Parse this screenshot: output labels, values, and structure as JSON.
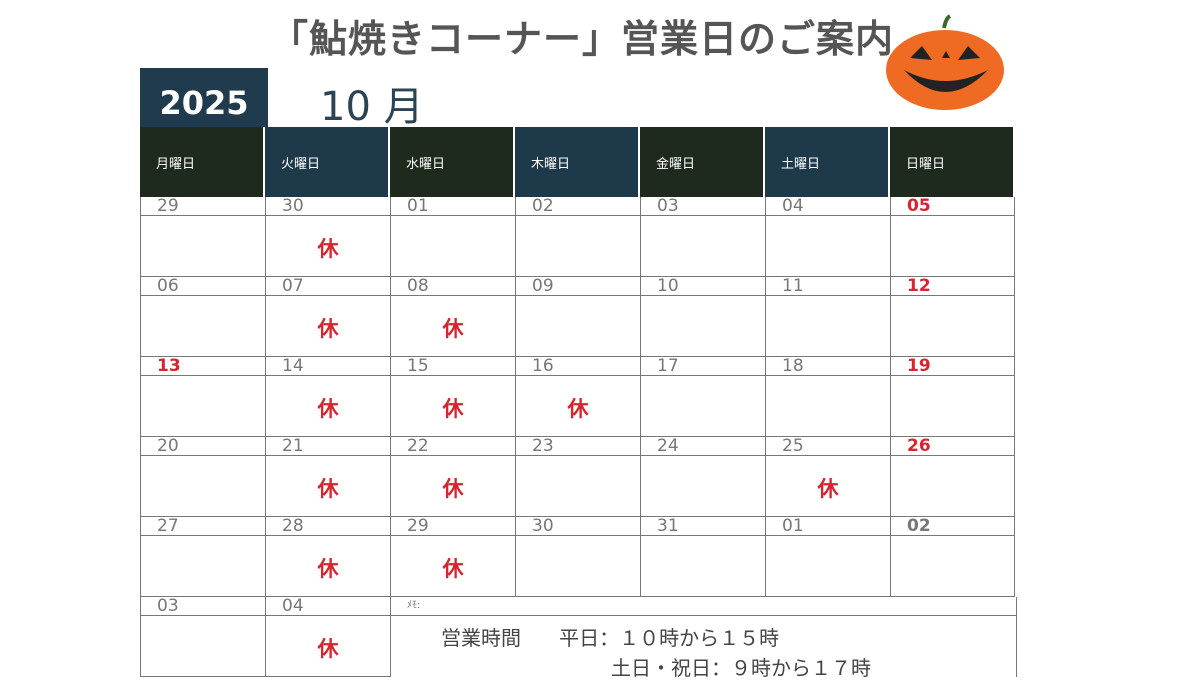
{
  "title": "「鮎焼きコーナー」営業日のご案内",
  "year": "2025",
  "month": "10 月",
  "colors": {
    "navy": "#1f3b4d",
    "dark_green": "#1f2a1f",
    "closed_red": "#d9232e"
  },
  "weekdays": [
    {
      "label": "月曜日",
      "color": "#1f2a1f"
    },
    {
      "label": "火曜日",
      "color": "#1e3a4a"
    },
    {
      "label": "水曜日",
      "color": "#1f2a1f"
    },
    {
      "label": "木曜日",
      "color": "#1e3a4a"
    },
    {
      "label": "金曜日",
      "color": "#1f2a1f"
    },
    {
      "label": "土曜日",
      "color": "#1e3a4a"
    },
    {
      "label": "日曜日",
      "color": "#1f2a1f"
    }
  ],
  "closed_mark": "休",
  "weeks": [
    [
      {
        "d": "29"
      },
      {
        "d": "30",
        "closed": true
      },
      {
        "d": "01"
      },
      {
        "d": "02"
      },
      {
        "d": "03"
      },
      {
        "d": "04"
      },
      {
        "d": "05",
        "s": "red"
      }
    ],
    [
      {
        "d": "06"
      },
      {
        "d": "07",
        "closed": true
      },
      {
        "d": "08",
        "closed": true
      },
      {
        "d": "09"
      },
      {
        "d": "10"
      },
      {
        "d": "11"
      },
      {
        "d": "12",
        "s": "red"
      }
    ],
    [
      {
        "d": "13",
        "s": "red"
      },
      {
        "d": "14",
        "closed": true
      },
      {
        "d": "15",
        "closed": true
      },
      {
        "d": "16",
        "closed": true
      },
      {
        "d": "17"
      },
      {
        "d": "18"
      },
      {
        "d": "19",
        "s": "red"
      }
    ],
    [
      {
        "d": "20"
      },
      {
        "d": "21",
        "closed": true
      },
      {
        "d": "22",
        "closed": true
      },
      {
        "d": "23"
      },
      {
        "d": "24"
      },
      {
        "d": "25",
        "closed": true
      },
      {
        "d": "26",
        "s": "red"
      }
    ],
    [
      {
        "d": "27"
      },
      {
        "d": "28",
        "closed": true
      },
      {
        "d": "29",
        "closed": true
      },
      {
        "d": "30"
      },
      {
        "d": "31"
      },
      {
        "d": "01"
      },
      {
        "d": "02",
        "s": "grey"
      }
    ],
    [
      {
        "d": "03"
      },
      {
        "d": "04",
        "closed": true
      }
    ]
  ],
  "memo": {
    "label": "ﾒﾓ:",
    "hours_label": "営業時間",
    "weekday": "平日：１０時から１５時",
    "weekend": "土日・祝日：９時から１７時"
  }
}
